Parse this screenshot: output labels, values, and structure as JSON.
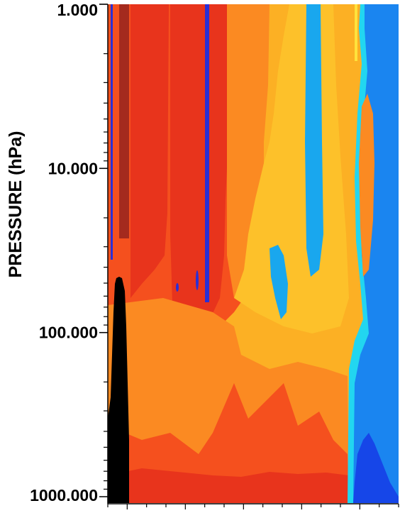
{
  "chart_data": {
    "type": "heatmap",
    "title": "",
    "ylabel": "PRESSURE (hPa)",
    "xlabel": "",
    "y_scale": "log",
    "y_inverted": true,
    "ylim": [
      1000,
      1
    ],
    "y_ticks": [
      {
        "value": 1,
        "label": "1.000"
      },
      {
        "value": 10,
        "label": "10.000"
      },
      {
        "value": 100,
        "label": "100.000"
      },
      {
        "value": 1000,
        "label": "1000.000"
      }
    ],
    "x_tick_count": 16,
    "palette": {
      "dark_red": "#c0281a",
      "red": "#e8341c",
      "red_orange": "#f5501e",
      "orange": "#fb8a22",
      "light_orange": "#fcb024",
      "yellow_orange": "#fdc12a",
      "yellow": "#ffe23c",
      "cyan": "#22d6f0",
      "light_blue": "#19a7ee",
      "blue": "#1a85f0",
      "dark_blue": "#1646e8",
      "deep_blue": "#2a2fd6",
      "terrain": "#000000"
    }
  }
}
